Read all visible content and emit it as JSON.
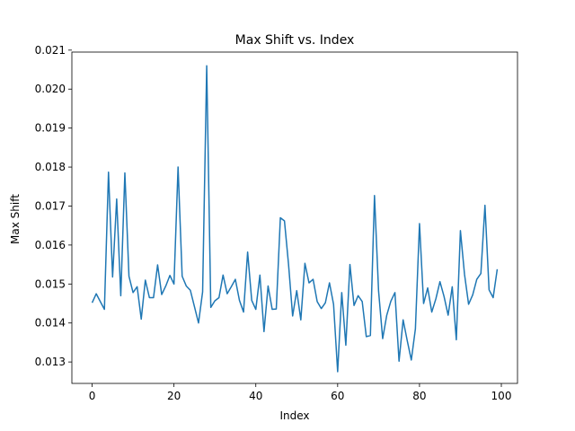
{
  "chart_data": {
    "type": "line",
    "title": "Max Shift vs. Index",
    "xlabel": "Index",
    "ylabel": "Max Shift",
    "xlim": [
      -4.95,
      103.95
    ],
    "ylim": [
      0.01245,
      0.02095
    ],
    "xticks": [
      0,
      20,
      40,
      60,
      80,
      100
    ],
    "yticks": [
      0.013,
      0.014,
      0.015,
      0.016,
      0.017,
      0.018,
      0.019,
      0.02,
      0.021
    ],
    "ytick_labels": [
      "0.013",
      "0.014",
      "0.015",
      "0.016",
      "0.017",
      "0.018",
      "0.019",
      "0.020",
      "0.021"
    ],
    "grid": false,
    "line_color": "#1f77b4",
    "series": [
      {
        "x": [
          0,
          1,
          2,
          3,
          4,
          5,
          6,
          7,
          8,
          9,
          10,
          11,
          12,
          13,
          14,
          15,
          16,
          17,
          18,
          19,
          20,
          21,
          22,
          23,
          24,
          25,
          26,
          27,
          28,
          29,
          30,
          31,
          32,
          33,
          34,
          35,
          36,
          37,
          38,
          39,
          40,
          41,
          42,
          43,
          44,
          45,
          46,
          47,
          48,
          49,
          50,
          51,
          52,
          53,
          54,
          55,
          56,
          57,
          58,
          59,
          60,
          61,
          62,
          63,
          64,
          65,
          66,
          67,
          68,
          69,
          70,
          71,
          72,
          73,
          74,
          75,
          76,
          77,
          78,
          79,
          80,
          81,
          82,
          83,
          84,
          85,
          86,
          87,
          88,
          89,
          90,
          91,
          92,
          93,
          94,
          95,
          96,
          97,
          98,
          99
        ],
        "values": [
          0.01452,
          0.01475,
          0.01455,
          0.01435,
          0.01787,
          0.01518,
          0.01718,
          0.0147,
          0.01785,
          0.0152,
          0.01478,
          0.01493,
          0.0141,
          0.0151,
          0.01465,
          0.01465,
          0.01549,
          0.01473,
          0.01495,
          0.01522,
          0.015,
          0.018,
          0.0152,
          0.01495,
          0.01484,
          0.01442,
          0.014,
          0.0148,
          0.0206,
          0.0144,
          0.01457,
          0.01465,
          0.01523,
          0.01475,
          0.01493,
          0.01512,
          0.01458,
          0.01428,
          0.01582,
          0.01458,
          0.01435,
          0.01523,
          0.01378,
          0.01495,
          0.01435,
          0.01436,
          0.0167,
          0.01662,
          0.0155,
          0.01418,
          0.01483,
          0.01408,
          0.01553,
          0.01503,
          0.01512,
          0.01455,
          0.01437,
          0.01452,
          0.01503,
          0.01448,
          0.01275,
          0.01478,
          0.01343,
          0.0155,
          0.01445,
          0.0147,
          0.01455,
          0.01365,
          0.01368,
          0.01727,
          0.01482,
          0.0136,
          0.0142,
          0.01456,
          0.01478,
          0.01302,
          0.01408,
          0.01355,
          0.01305,
          0.01385,
          0.01655,
          0.0145,
          0.0149,
          0.01428,
          0.01462,
          0.01506,
          0.01468,
          0.0142,
          0.01493,
          0.01357,
          0.01637,
          0.01525,
          0.01448,
          0.01472,
          0.01512,
          0.01527,
          0.01702,
          0.01485,
          0.01465,
          0.01538
        ]
      }
    ]
  }
}
